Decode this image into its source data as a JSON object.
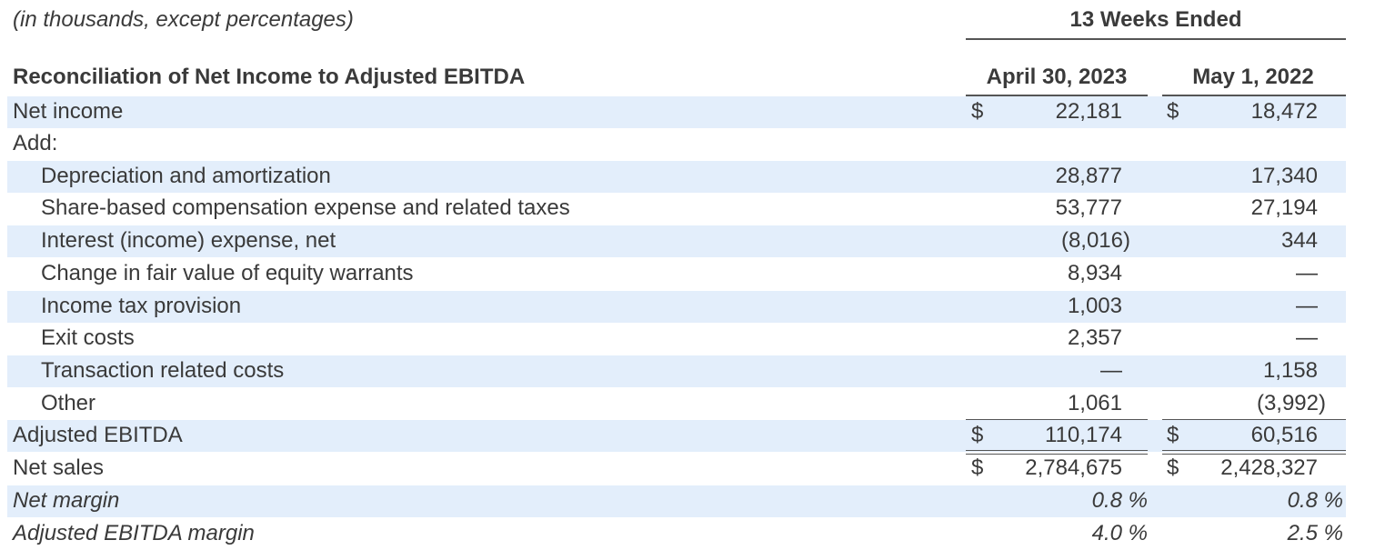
{
  "header": {
    "units_note": "(in thousands, except percentages)",
    "period_label": "13 Weeks Ended",
    "section_title": "Reconciliation of Net Income to Adjusted EBITDA",
    "columns": [
      "April 30, 2023",
      "May 1, 2022"
    ]
  },
  "rows": [
    {
      "label": "Net income",
      "c1_dollar": "$",
      "c1": "22,181",
      "c2_dollar": "$",
      "c2": "18,472"
    },
    {
      "label": "Add:",
      "c1_dollar": "",
      "c1": "",
      "c2_dollar": "",
      "c2": ""
    },
    {
      "label": "Depreciation and amortization",
      "c1_dollar": "",
      "c1": "28,877",
      "c2_dollar": "",
      "c2": "17,340"
    },
    {
      "label": "Share-based compensation expense and related taxes",
      "c1_dollar": "",
      "c1": "53,777",
      "c2_dollar": "",
      "c2": "27,194"
    },
    {
      "label": "Interest (income) expense, net",
      "c1_dollar": "",
      "c1": "(8,016)",
      "c2_dollar": "",
      "c2": "344"
    },
    {
      "label": "Change in fair value of equity warrants",
      "c1_dollar": "",
      "c1": "8,934",
      "c2_dollar": "",
      "c2": "—"
    },
    {
      "label": "Income tax provision",
      "c1_dollar": "",
      "c1": "1,003",
      "c2_dollar": "",
      "c2": "—"
    },
    {
      "label": "Exit costs",
      "c1_dollar": "",
      "c1": "2,357",
      "c2_dollar": "",
      "c2": "—"
    },
    {
      "label": "Transaction related costs",
      "c1_dollar": "",
      "c1": "—",
      "c2_dollar": "",
      "c2": "1,158"
    },
    {
      "label": "Other",
      "c1_dollar": "",
      "c1": "1,061",
      "c2_dollar": "",
      "c2": "(3,992)"
    },
    {
      "label": "Adjusted EBITDA",
      "c1_dollar": "$",
      "c1": "110,174",
      "c2_dollar": "$",
      "c2": "60,516"
    },
    {
      "label": "Net sales",
      "c1_dollar": "$",
      "c1": "2,784,675",
      "c2_dollar": "$",
      "c2": "2,428,327"
    },
    {
      "label": "Net margin",
      "c1_dollar": "",
      "c1": "0.8 %",
      "c2_dollar": "",
      "c2": "0.8 %"
    },
    {
      "label": "Adjusted EBITDA margin",
      "c1_dollar": "",
      "c1": "4.0 %",
      "c2_dollar": "",
      "c2": "2.5 %"
    }
  ],
  "colors": {
    "shaded_row": "#e3eefb",
    "text": "#3a3a3a",
    "rule": "#555555"
  }
}
